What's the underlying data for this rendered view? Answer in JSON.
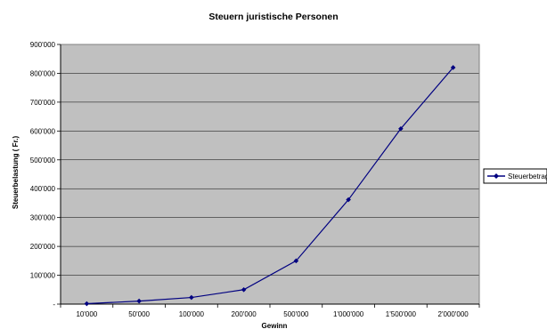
{
  "chart_data": {
    "type": "line",
    "title": "Steuern juristische Personen",
    "xlabel": "Gewinn",
    "ylabel": "Steuerbelastung  ( Fr.)",
    "categories": [
      "10'000",
      "50'000",
      "100'000",
      "200'000",
      "500'000",
      "1'000'000",
      "1'500'000",
      "2'000'000"
    ],
    "series": [
      {
        "name": "Steuerbetrag",
        "values": [
          1500,
          10500,
          23000,
          50000,
          150000,
          362000,
          608000,
          820000
        ]
      }
    ],
    "ylim": [
      0,
      900000
    ],
    "y_ticks": [
      "-",
      "100'000",
      "200'000",
      "300'000",
      "400'000",
      "500'000",
      "600'000",
      "700'000",
      "800'000",
      "900'000"
    ],
    "grid": true,
    "legend_position": "right",
    "colors": {
      "plot_background": "#c0c0c0",
      "series_line": "#000080",
      "gridline": "#000000"
    }
  }
}
